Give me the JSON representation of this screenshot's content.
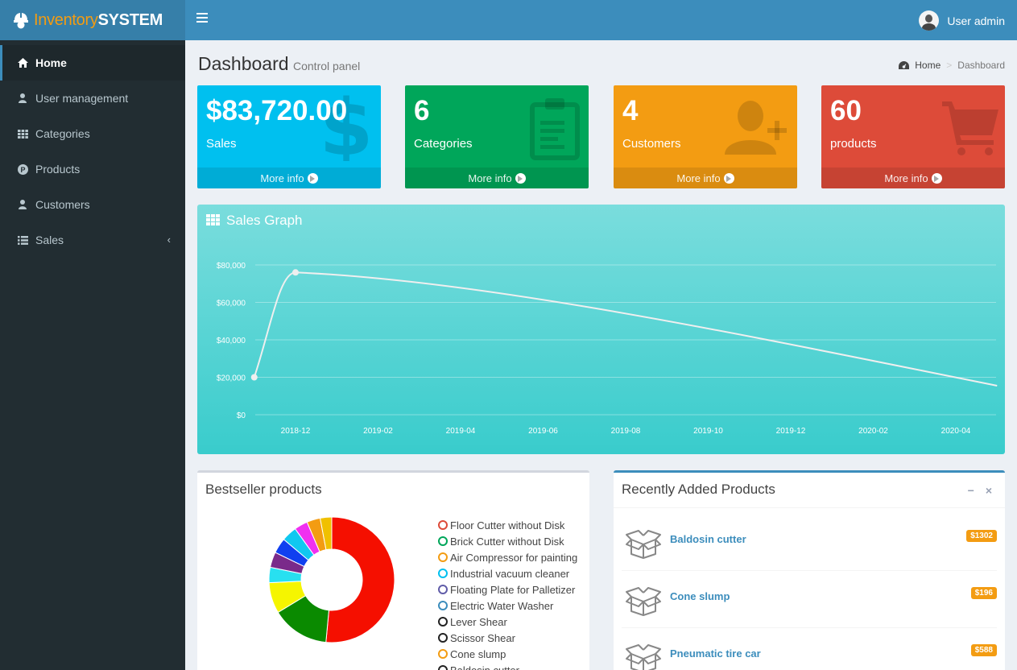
{
  "app": {
    "logo_accent": "Inventory",
    "logo_bold": "SYSTEM",
    "user_name": "User admin"
  },
  "sidebar": {
    "items": [
      {
        "label": "Home",
        "icon": "home-icon"
      },
      {
        "label": "User management",
        "icon": "user-icon"
      },
      {
        "label": "Categories",
        "icon": "grid-icon"
      },
      {
        "label": "Products",
        "icon": "product-icon"
      },
      {
        "label": "Customers",
        "icon": "user-icon"
      },
      {
        "label": "Sales",
        "icon": "list-icon"
      }
    ]
  },
  "page": {
    "title": "Dashboard",
    "subtitle": "Control panel",
    "breadcrumb_home": "Home",
    "breadcrumb_current": "Dashboard"
  },
  "stats": [
    {
      "value": "$83,720.00",
      "label": "Sales",
      "more": "More info",
      "color": "#00c0ef",
      "icon": "dollar-icon"
    },
    {
      "value": "6",
      "label": "Categories",
      "more": "More info",
      "color": "#00a65a",
      "icon": "clipboard-icon"
    },
    {
      "value": "4",
      "label": "Customers",
      "more": "More info",
      "color": "#f39c12",
      "icon": "user-add-icon"
    },
    {
      "value": "60",
      "label": "products",
      "more": "More info",
      "color": "#dd4b39",
      "icon": "cart-icon"
    }
  ],
  "sales_graph": {
    "title": "Sales Graph"
  },
  "chart_data": {
    "type": "line",
    "title": "Sales Graph",
    "x": [
      "2018-11",
      "2018-12",
      "2020-05"
    ],
    "values": [
      20000,
      76000,
      15500
    ],
    "x_ticks": [
      "2018-12",
      "2019-02",
      "2019-04",
      "2019-06",
      "2019-08",
      "2019-10",
      "2019-12",
      "2020-02",
      "2020-04"
    ],
    "y_ticks": [
      "$0",
      "$20,000",
      "$40,000",
      "$60,000",
      "$80,000"
    ],
    "ylim": [
      0,
      80000
    ],
    "grid": true
  },
  "bestseller": {
    "title": "Bestseller products",
    "items": [
      {
        "label": "Floor Cutter without Disk",
        "value": 52,
        "color": "#f50f00"
      },
      {
        "label": "Brick Cutter without Disk",
        "value": 15,
        "color": "#0a8a00"
      },
      {
        "label": "Air Compressor for painting",
        "value": 8,
        "color": "#f5f500"
      },
      {
        "label": "Industrial vacuum cleaner",
        "value": 4,
        "color": "#28e0f0"
      },
      {
        "label": "Floating Plate for Palletizer",
        "value": 4,
        "color": "#7a2a8a"
      },
      {
        "label": "Electric Water Washer",
        "value": 4,
        "color": "#1040f0"
      },
      {
        "label": "Lever Shear",
        "value": 4,
        "color": "#10c8f0"
      },
      {
        "label": "Scissor Shear",
        "value": 3.5,
        "color": "#f030f0"
      },
      {
        "label": "Cone slump",
        "value": 3.5,
        "color": "#f39c12"
      },
      {
        "label": "Baldosin cutter",
        "value": 3,
        "color": "#f0c000"
      }
    ],
    "legend_colors": [
      "#dd4b39",
      "#00a65a",
      "#f39c12",
      "#00c0ef",
      "#605ca8",
      "#3c8dbc",
      "#222",
      "#222",
      "#f39c12",
      "#222"
    ]
  },
  "recent": {
    "title": "Recently Added Products",
    "items": [
      {
        "name": "Baldosin cutter",
        "price": "$1302"
      },
      {
        "name": "Cone slump",
        "price": "$196"
      },
      {
        "name": "Pneumatic tire car",
        "price": "$588"
      }
    ]
  }
}
